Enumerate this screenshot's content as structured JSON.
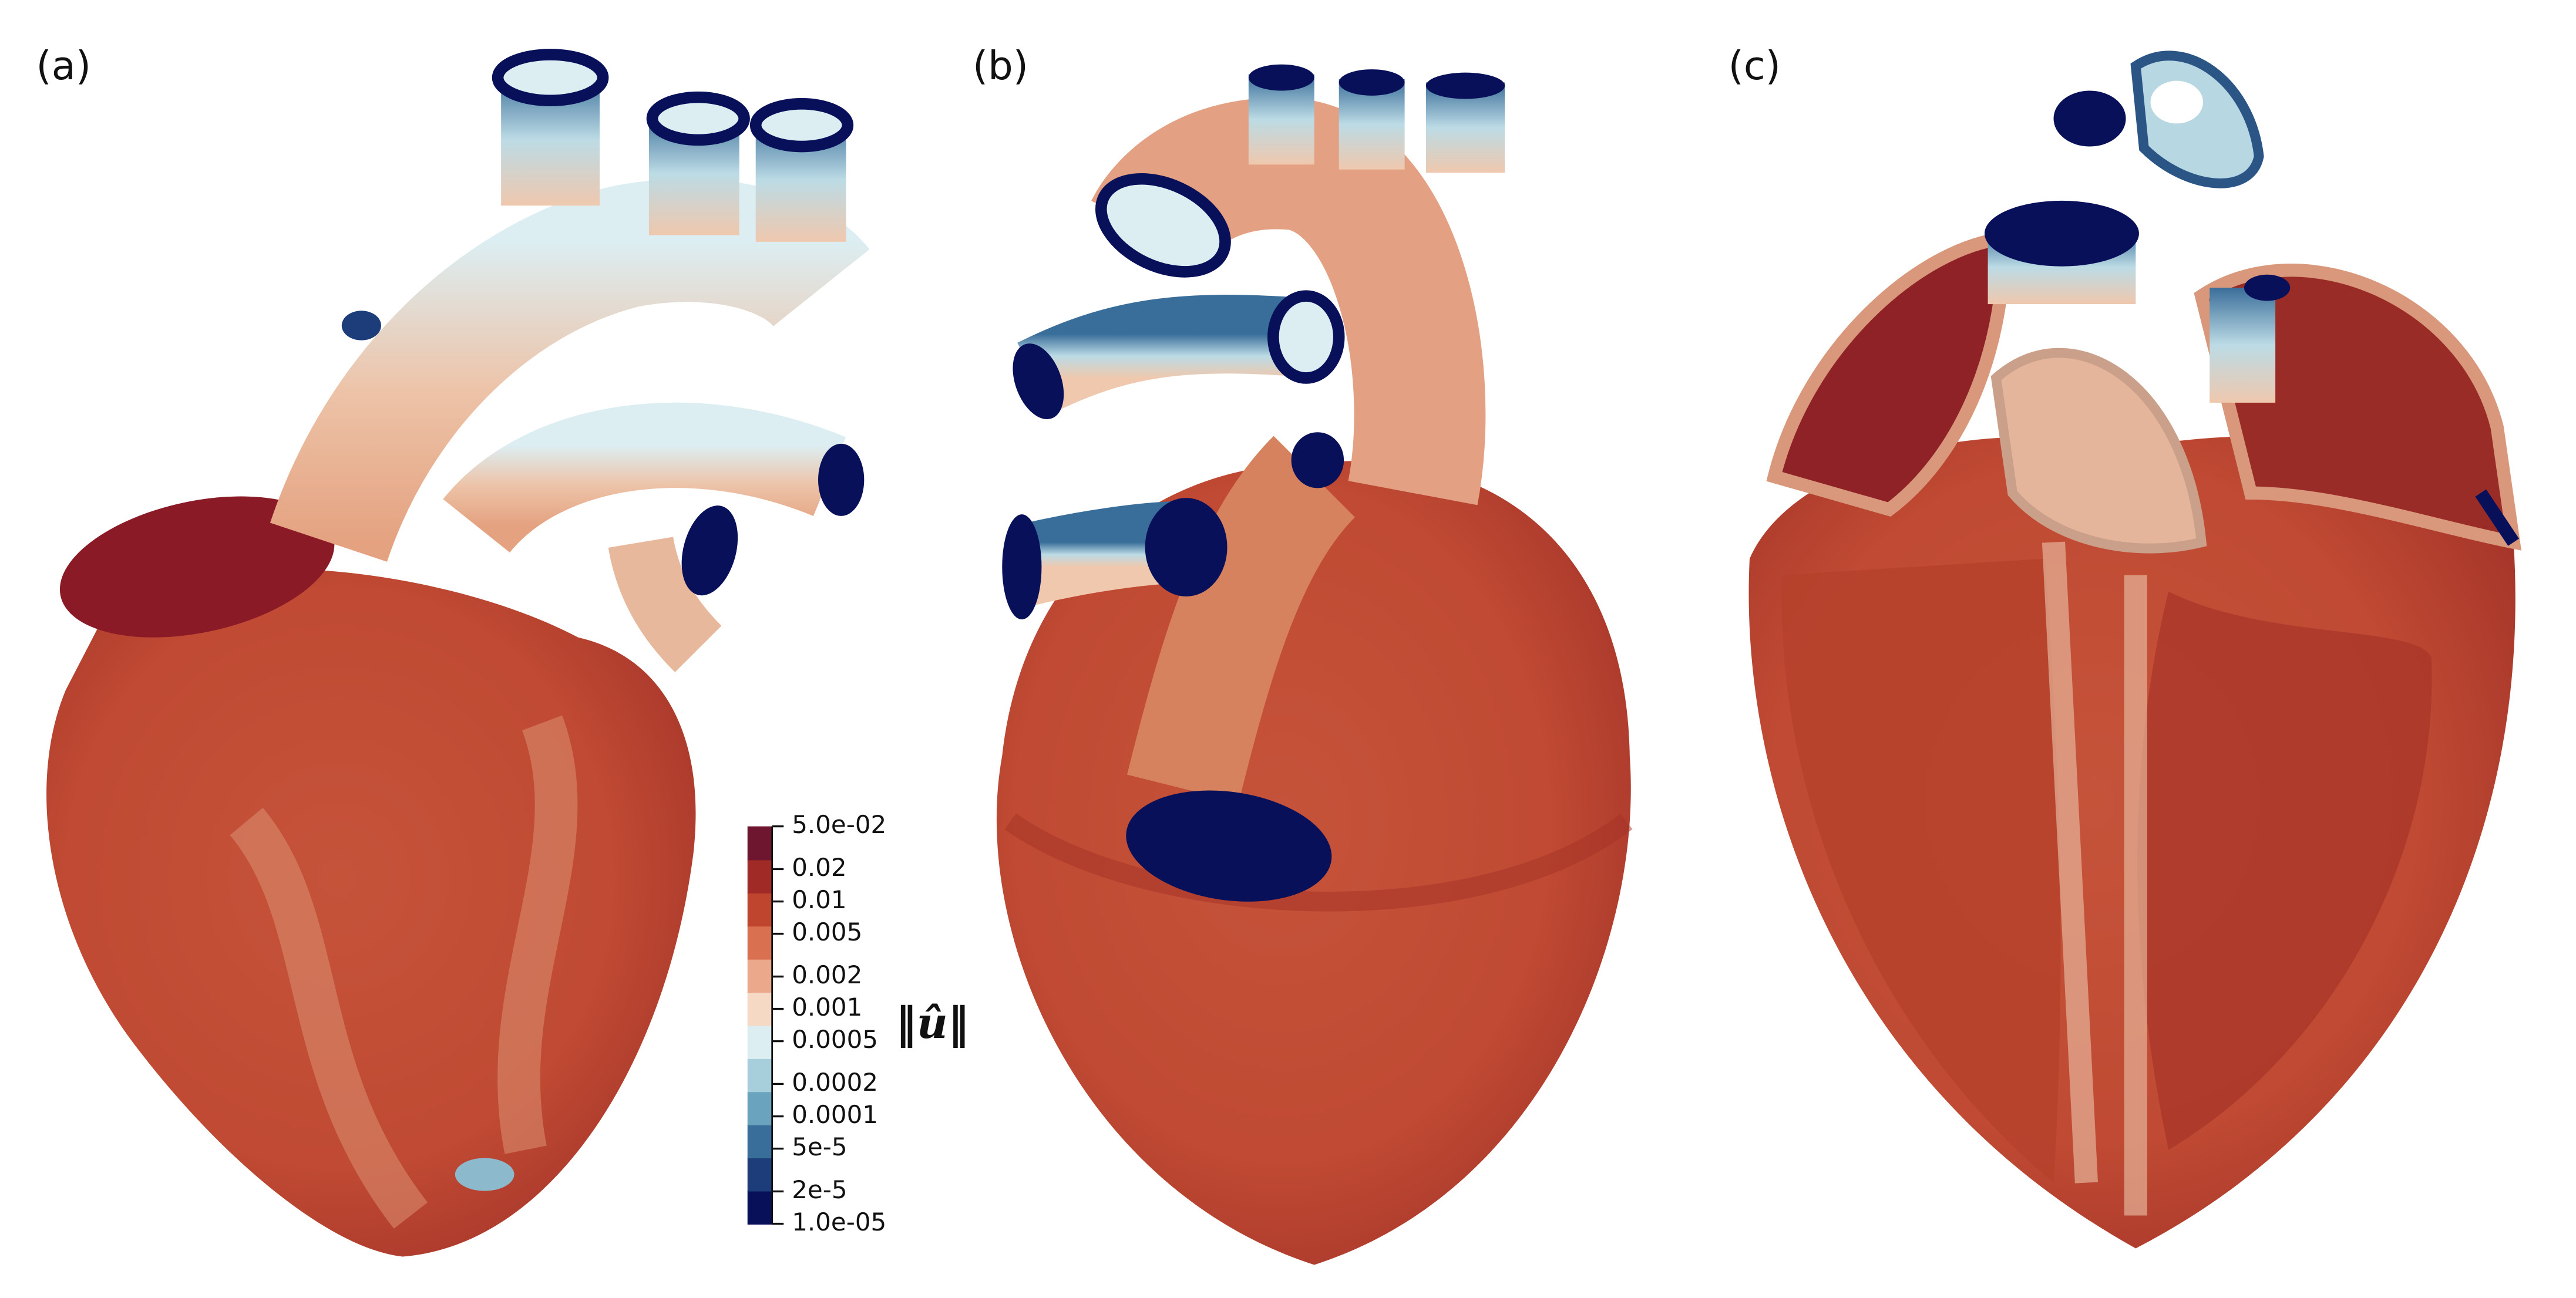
{
  "panels": [
    {
      "label": "(a)"
    },
    {
      "label": "(b)"
    },
    {
      "label": "(c)"
    }
  ],
  "colorbar": {
    "label": "‖û‖",
    "scale": "log",
    "lim": [
      1e-05,
      0.05
    ],
    "ticks": [
      {
        "value": 0.05,
        "label": "5.0e-02"
      },
      0.02,
      0.01,
      0.005,
      0.002,
      0.001,
      0.0005,
      0.0002,
      0.0001,
      {
        "value": 5e-05,
        "label": "5e-5"
      },
      {
        "value": 2e-05,
        "label": "2e-5"
      },
      {
        "value": 1e-05,
        "label": "1.0e-05"
      }
    ],
    "colors": [
      "#08105a",
      "#1c3d7a",
      "#3a6e9a",
      "#6aa3bd",
      "#a6cedb",
      "#dceef2",
      "#f5d9c4",
      "#eba88a",
      "#d9704f",
      "#c0452e",
      "#a02a25",
      "#6e1530"
    ]
  }
}
